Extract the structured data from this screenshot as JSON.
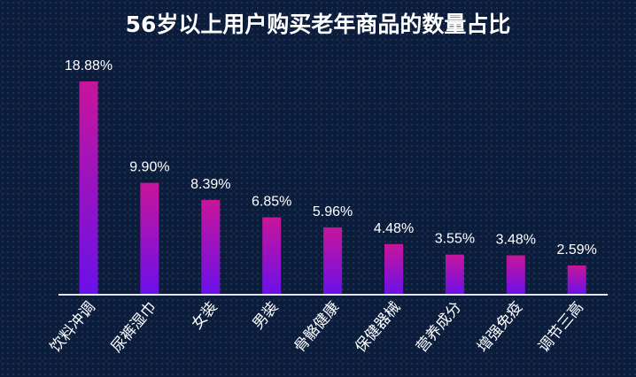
{
  "chart_data": {
    "type": "bar",
    "title": "56岁以上用户购买老年商品的数量占比",
    "categories": [
      "饮料冲调",
      "尿裤湿巾",
      "女装",
      "男装",
      "骨骼健康",
      "保健器械",
      "营养成分",
      "增强免疫",
      "调节三高"
    ],
    "values": [
      18.88,
      9.9,
      8.39,
      6.85,
      5.96,
      4.48,
      3.55,
      3.48,
      2.59
    ],
    "labels": [
      "18.88%",
      "9.90%",
      "8.39%",
      "6.85%",
      "5.96%",
      "4.48%",
      "3.55%",
      "3.48%",
      "2.59%"
    ],
    "xlabel": "",
    "ylabel": "",
    "ylim": [
      0,
      18.88
    ],
    "grid": false,
    "colors": {
      "bar_top": "#c8159a",
      "bar_bottom": "#6a10ea",
      "axis": "#e8e6f5",
      "text": "#ffffff"
    }
  }
}
